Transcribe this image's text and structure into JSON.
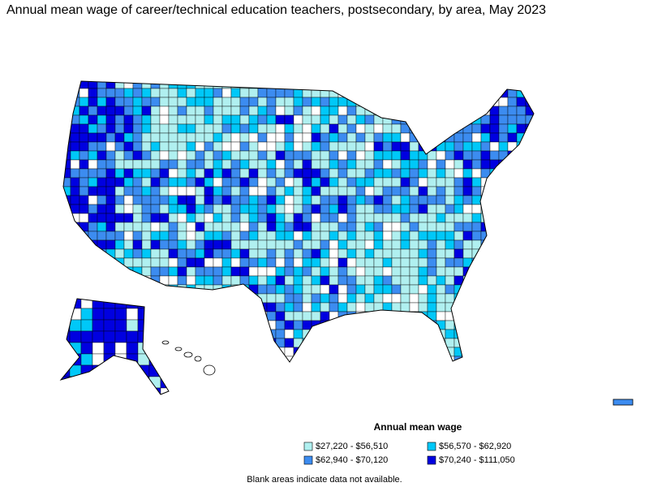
{
  "title": "Annual mean wage of career/technical education teachers, postsecondary, by area, May 2023",
  "legend": {
    "title": "Annual mean wage",
    "items": [
      {
        "label": "$27,220 - $56,510",
        "color": "#b0f0f0"
      },
      {
        "label": "$56,570 - $62,920",
        "color": "#00c8f8"
      },
      {
        "label": "$62,940 - $70,120",
        "color": "#3c8cf0"
      },
      {
        "label": "$70,240 - $111,050",
        "color": "#0000e0"
      }
    ]
  },
  "note": "Blank areas indicate data not available."
}
